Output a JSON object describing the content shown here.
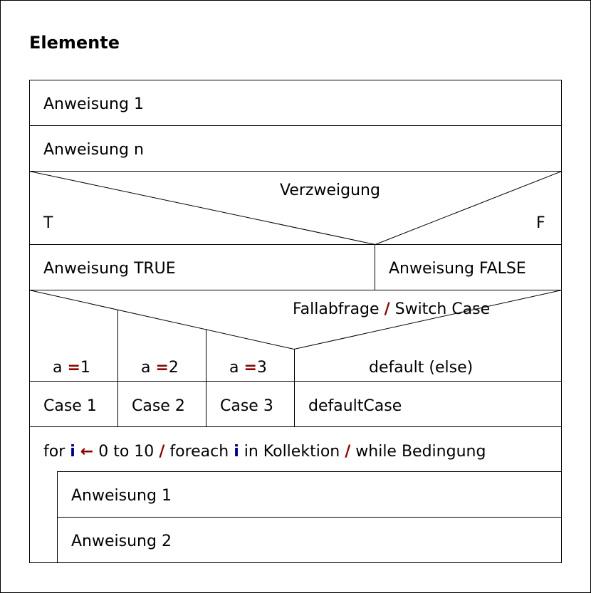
{
  "title": "Elemente",
  "stmt1": "Anweisung 1",
  "stmtn": "Anweisung n",
  "branch": {
    "label": "Verzweigung",
    "t": "T",
    "f": "F",
    "true_stmt": "Anweisung TRUE",
    "false_stmt": "Anweisung FALSE"
  },
  "switch": {
    "label_a": "Fallabfrage",
    "sep": "/",
    "label_b": "Switch Case",
    "conds": [
      {
        "var": "a",
        "op": "=",
        "val": "1"
      },
      {
        "var": "a",
        "op": "=",
        "val": "2"
      },
      {
        "var": "a",
        "op": "=",
        "val": "3"
      }
    ],
    "default_label": "default (else)",
    "cases": [
      "Case 1",
      "Case 2",
      "Case 3",
      "defaultCase"
    ]
  },
  "loop": {
    "for_kw": "for",
    "var": "i",
    "arrow": "←",
    "range": "0 to 10",
    "sep": "/",
    "foreach_kw": "foreach",
    "in_kw": "in Kollektion",
    "while_kw": "while Bedingung",
    "body": [
      "Anweisung 1",
      "Anweisung 2"
    ]
  }
}
